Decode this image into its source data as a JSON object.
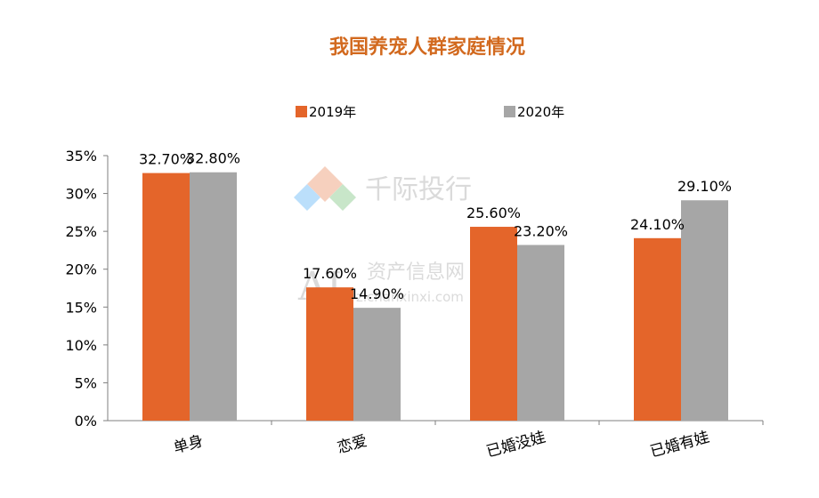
{
  "chart_data": {
    "type": "bar",
    "title": "我国养宠人群家庭情况",
    "categories": [
      "单身",
      "恋爱",
      "已婚没娃",
      "已婚有娃"
    ],
    "series": [
      {
        "name": "2019年",
        "color": "#E4652A",
        "values": [
          32.7,
          17.6,
          25.6,
          24.1
        ],
        "labels": [
          "32.70%",
          "17.60%",
          "25.60%",
          "24.10%"
        ]
      },
      {
        "name": "2020年",
        "color": "#A6A6A6",
        "values": [
          32.8,
          14.9,
          23.2,
          29.1
        ],
        "labels": [
          "32.80%",
          "14.90%",
          "23.20%",
          "29.10%"
        ]
      }
    ],
    "ylim": [
      0,
      35
    ],
    "yticks": [
      "0%",
      "5%",
      "10%",
      "15%",
      "20%",
      "25%",
      "30%",
      "35%"
    ],
    "xlabel": "",
    "ylabel": "",
    "legend_position": "top",
    "grid": false,
    "title_color": "#D2691E"
  },
  "watermark": {
    "logo_text": "AI",
    "name": "千际投行",
    "subtitle": "资产信息网",
    "url": "zichanxinxi.com"
  }
}
